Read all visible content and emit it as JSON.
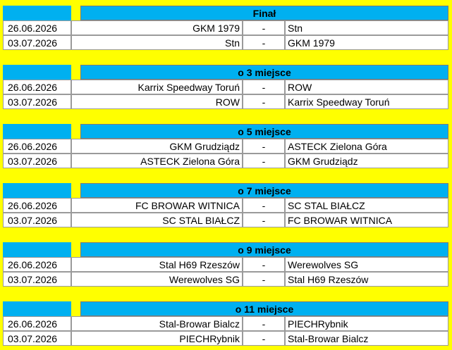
{
  "sections": [
    {
      "title": "Finał",
      "matches": [
        {
          "date": "26.06.2026",
          "home": "GKM 1979",
          "sep": "-",
          "away": "Stn"
        },
        {
          "date": "03.07.2026",
          "home": "Stn",
          "sep": "-",
          "away": "GKM 1979"
        }
      ]
    },
    {
      "title": "o 3 miejsce",
      "matches": [
        {
          "date": "26.06.2026",
          "home": "Karrix Speedway Toruń",
          "sep": "-",
          "away": "ROW"
        },
        {
          "date": "03.07.2026",
          "home": "ROW",
          "sep": "-",
          "away": "Karrix Speedway Toruń"
        }
      ]
    },
    {
      "title": "o 5 miejsce",
      "matches": [
        {
          "date": "26.06.2026",
          "home": "GKM Grudziądz",
          "sep": "-",
          "away": "ASTECK Zielona Góra"
        },
        {
          "date": "03.07.2026",
          "home": "ASTECK Zielona Góra",
          "sep": "-",
          "away": "GKM Grudziądz"
        }
      ]
    },
    {
      "title": "o 7 miejsce",
      "matches": [
        {
          "date": "26.06.2026",
          "home": "FC BROWAR WITNICA",
          "sep": "-",
          "away": "SC STAL BIAŁCZ"
        },
        {
          "date": "03.07.2026",
          "home": "SC STAL BIAŁCZ",
          "sep": "-",
          "away": "FC BROWAR WITNICA"
        }
      ]
    },
    {
      "title": "o 9 miejsce",
      "matches": [
        {
          "date": "26.06.2026",
          "home": "Stal H69 Rzeszów",
          "sep": "-",
          "away": "Werewolves SG"
        },
        {
          "date": "03.07.2026",
          "home": "Werewolves SG",
          "sep": "-",
          "away": "Stal H69 Rzeszów"
        }
      ]
    },
    {
      "title": "o 11 miejsce",
      "matches": [
        {
          "date": "26.06.2026",
          "home": "Stal-Browar Bialcz",
          "sep": "-",
          "away": "PIECHRybnik"
        },
        {
          "date": "03.07.2026",
          "home": "PIECHRybnik",
          "sep": "-",
          "away": "Stal-Browar Bialcz"
        }
      ]
    }
  ]
}
